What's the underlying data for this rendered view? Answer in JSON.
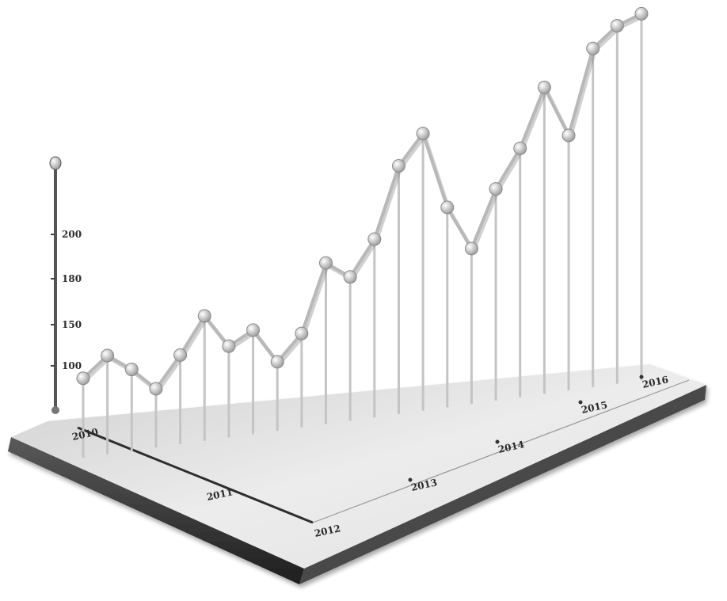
{
  "chart_data": {
    "type": "line",
    "style": "3d-isometric-monochrome",
    "title": "",
    "xlabel": "",
    "ylabel": "",
    "y_ticks": [
      "100",
      "150",
      "180",
      "200"
    ],
    "x_tick_labels": [
      "2010",
      "2011",
      "2012",
      "2013",
      "2014",
      "2015",
      "2016"
    ],
    "x": [
      0,
      1,
      2,
      3,
      4,
      5,
      6,
      7,
      8,
      9,
      10,
      11,
      12,
      13,
      14,
      15,
      16,
      17,
      18,
      19,
      20,
      21,
      22,
      23
    ],
    "series": [
      {
        "values": [
          95,
          110,
          98,
          82,
          105,
          132,
          108,
          118,
          93,
          112,
          162,
          150,
          176,
          228,
          250,
          194,
          162,
          204,
          232,
          275,
          238,
          300,
          315,
          322
        ]
      }
    ],
    "ylim": [
      60,
      330
    ],
    "grid": false,
    "legend": "none",
    "colors": {
      "line": "#b8b8b8",
      "marker": "#c9c9c9",
      "base_top": "#e6e6e6",
      "base_side": "#3a3a3a"
    }
  }
}
